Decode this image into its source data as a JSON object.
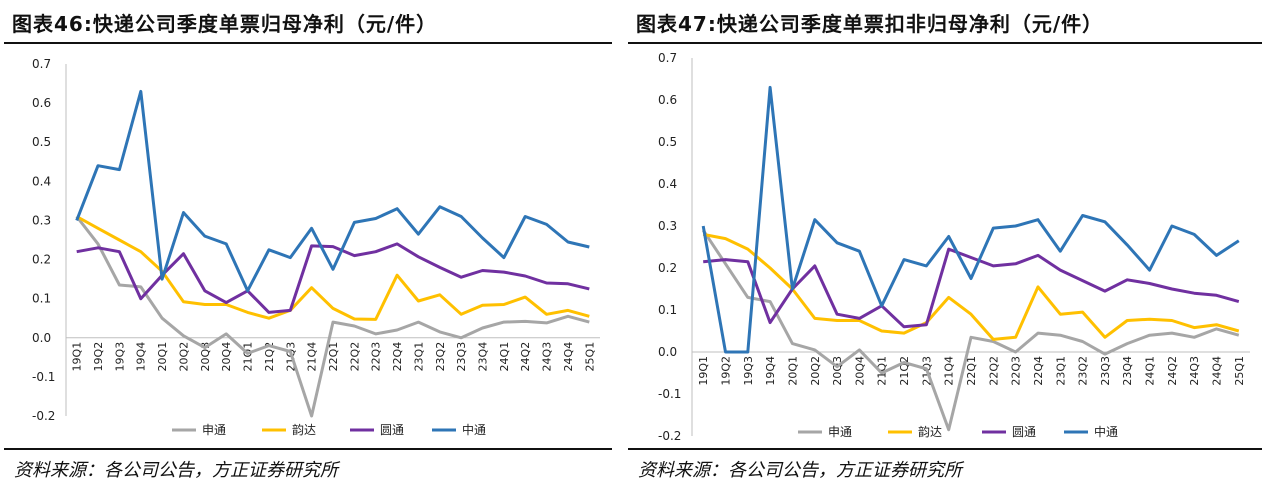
{
  "figures": [
    {
      "title": "图表46:快递公司季度单票归母净利（元/件）",
      "source": "资料来源：各公司公告，方正证券研究所",
      "chart_data": {
        "type": "line",
        "title": "图表46:快递公司季度单票归母净利（元/件）",
        "ylim": [
          -0.2,
          0.7
        ],
        "yticks": [
          "0.7",
          "0.6",
          "0.5",
          "0.4",
          "0.3",
          "0.2",
          "0.1",
          "0.0",
          "-0.1",
          "-0.2"
        ],
        "categories": [
          "19Q1",
          "19Q2",
          "19Q3",
          "19Q4",
          "20Q1",
          "20Q2",
          "20Q3",
          "20Q4",
          "21Q1",
          "21Q2",
          "21Q3",
          "21Q4",
          "22Q1",
          "22Q2",
          "22Q3",
          "22Q4",
          "23Q1",
          "23Q2",
          "23Q3",
          "23Q4",
          "24Q1",
          "24Q2",
          "24Q3",
          "24Q4",
          "25Q1"
        ],
        "grid": false,
        "legend_position": "bottom",
        "series": [
          {
            "name": "申通",
            "color": "#a6a6a6",
            "values": [
              0.31,
              0.24,
              0.135,
              0.13,
              0.05,
              0.005,
              -0.025,
              0.01,
              -0.04,
              -0.02,
              -0.035,
              -0.2,
              0.04,
              0.03,
              0.01,
              0.02,
              0.04,
              0.015,
              0.0,
              0.025,
              0.04,
              0.042,
              0.038,
              0.055,
              0.04
            ]
          },
          {
            "name": "韵达",
            "color": "#ffc000",
            "values": [
              0.31,
              0.28,
              0.25,
              0.22,
              0.17,
              0.092,
              0.085,
              0.085,
              0.065,
              0.05,
              0.07,
              0.128,
              0.075,
              0.048,
              0.047,
              0.16,
              0.094,
              0.11,
              0.06,
              0.083,
              0.085,
              0.104,
              0.06,
              0.07,
              0.055
            ]
          },
          {
            "name": "圆通",
            "color": "#7030a0",
            "values": [
              0.22,
              0.23,
              0.22,
              0.1,
              0.16,
              0.215,
              0.12,
              0.09,
              0.12,
              0.065,
              0.07,
              0.235,
              0.233,
              0.21,
              0.22,
              0.24,
              0.207,
              0.18,
              0.155,
              0.172,
              0.168,
              0.158,
              0.14,
              0.138,
              0.125
            ]
          },
          {
            "name": "中通",
            "color": "#2e75b6",
            "values": [
              0.3,
              0.44,
              0.43,
              0.63,
              0.15,
              0.32,
              0.26,
              0.24,
              0.12,
              0.225,
              0.205,
              0.28,
              0.175,
              0.295,
              0.305,
              0.33,
              0.265,
              0.335,
              0.31,
              0.255,
              0.205,
              0.31,
              0.29,
              0.245,
              0.232
            ]
          }
        ]
      }
    },
    {
      "title": "图表47:快递公司季度单票扣非归母净利（元/件）",
      "source": "资料来源：各公司公告，方正证券研究所",
      "chart_data": {
        "type": "line",
        "title": "图表47:快递公司季度单票扣非归母净利（元/件）",
        "ylim": [
          -0.2,
          0.7
        ],
        "yticks": [
          "0.7",
          "0.6",
          "0.5",
          "0.4",
          "0.3",
          "0.2",
          "0.1",
          "0.0",
          "-0.1",
          "-0.2"
        ],
        "categories": [
          "19Q1",
          "19Q2",
          "19Q3",
          "19Q4",
          "20Q1",
          "20Q2",
          "20Q3",
          "20Q4",
          "21Q1",
          "21Q2",
          "21Q3",
          "21Q4",
          "22Q1",
          "22Q2",
          "22Q3",
          "22Q4",
          "23Q1",
          "23Q2",
          "23Q3",
          "23Q4",
          "24Q1",
          "24Q2",
          "24Q3",
          "24Q4",
          "25Q1"
        ],
        "grid": false,
        "legend_position": "bottom",
        "series": [
          {
            "name": "申通",
            "color": "#a6a6a6",
            "values": [
              0.29,
              0.21,
              0.13,
              0.12,
              0.02,
              0.005,
              -0.035,
              0.005,
              -0.05,
              -0.025,
              -0.04,
              -0.185,
              0.035,
              0.025,
              0.0,
              0.045,
              0.04,
              0.025,
              -0.005,
              0.02,
              0.04,
              0.045,
              0.035,
              0.055,
              0.04
            ]
          },
          {
            "name": "韵达",
            "color": "#ffc000",
            "values": [
              0.28,
              0.27,
              0.245,
              0.2,
              0.15,
              0.08,
              0.075,
              0.075,
              0.05,
              0.045,
              0.07,
              0.13,
              0.09,
              0.03,
              0.035,
              0.155,
              0.09,
              0.095,
              0.035,
              0.075,
              0.078,
              0.075,
              0.058,
              0.065,
              0.05
            ]
          },
          {
            "name": "圆通",
            "color": "#7030a0",
            "values": [
              0.215,
              0.22,
              0.215,
              0.07,
              0.15,
              0.205,
              0.09,
              0.08,
              0.11,
              0.06,
              0.065,
              0.245,
              0.225,
              0.205,
              0.21,
              0.23,
              0.195,
              0.17,
              0.145,
              0.172,
              0.163,
              0.15,
              0.14,
              0.135,
              0.12
            ]
          },
          {
            "name": "中通",
            "color": "#2e75b6",
            "values": [
              0.3,
              0.0,
              0.0,
              0.63,
              0.15,
              0.315,
              0.26,
              0.24,
              0.11,
              0.22,
              0.205,
              0.275,
              0.175,
              0.295,
              0.3,
              0.315,
              0.24,
              0.325,
              0.31,
              0.255,
              0.195,
              0.3,
              0.28,
              0.23,
              0.265
            ]
          }
        ]
      }
    }
  ]
}
